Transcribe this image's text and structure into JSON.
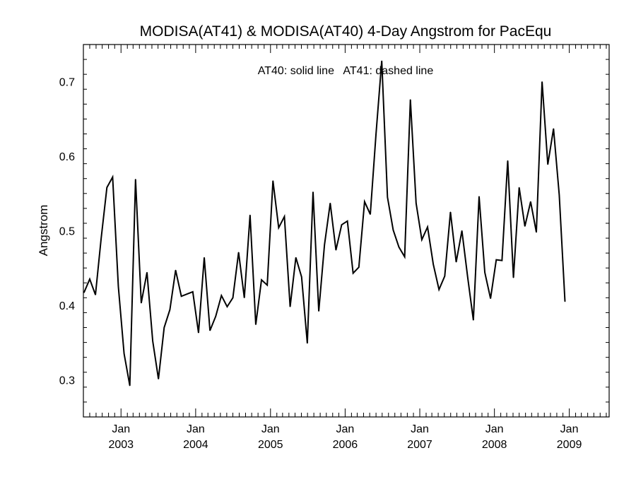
{
  "chart_data": {
    "type": "line",
    "title": "MODISA(AT41) & MODISA(AT40) 4-Day Angstrom for PacEqu",
    "annotation": "AT40: solid line   AT41: dashed line",
    "xlabel": "",
    "ylabel": "Angstrom",
    "xlim": [
      "2002-07-01",
      "2009-07-15"
    ],
    "ylim": [
      0.25,
      0.75
    ],
    "y_ticks": [
      0.3,
      0.4,
      0.5,
      0.6,
      0.7
    ],
    "y_tick_labels": [
      "0.3",
      "0.4",
      "0.5",
      "0.6",
      "0.7"
    ],
    "x_ticks": [
      {
        "date": "2003-01-01",
        "month": "Jan",
        "year": "2003"
      },
      {
        "date": "2004-01-01",
        "month": "Jan",
        "year": "2004"
      },
      {
        "date": "2005-01-01",
        "month": "Jan",
        "year": "2005"
      },
      {
        "date": "2006-01-01",
        "month": "Jan",
        "year": "2006"
      },
      {
        "date": "2007-01-01",
        "month": "Jan",
        "year": "2007"
      },
      {
        "date": "2008-01-01",
        "month": "Jan",
        "year": "2008"
      },
      {
        "date": "2009-01-01",
        "month": "Jan",
        "year": "2009"
      }
    ],
    "grid": false,
    "series": [
      {
        "name": "AT40",
        "style": "solid",
        "color": "#000000",
        "points": [
          [
            "2002-07-04",
            0.417
          ],
          [
            "2002-08-01",
            0.435
          ],
          [
            "2002-08-29",
            0.414
          ],
          [
            "2002-09-26",
            0.49
          ],
          [
            "2002-10-24",
            0.558
          ],
          [
            "2002-11-21",
            0.572
          ],
          [
            "2002-12-19",
            0.425
          ],
          [
            "2003-01-16",
            0.335
          ],
          [
            "2003-02-13",
            0.292
          ],
          [
            "2003-03-13",
            0.569
          ],
          [
            "2003-04-10",
            0.403
          ],
          [
            "2003-05-08",
            0.444
          ],
          [
            "2003-06-05",
            0.352
          ],
          [
            "2003-07-03",
            0.301
          ],
          [
            "2003-07-31",
            0.37
          ],
          [
            "2003-08-28",
            0.394
          ],
          [
            "2003-09-25",
            0.447
          ],
          [
            "2003-10-23",
            0.412
          ],
          [
            "2003-11-20",
            0.415
          ],
          [
            "2003-12-18",
            0.418
          ],
          [
            "2004-01-15",
            0.363
          ],
          [
            "2004-02-12",
            0.464
          ],
          [
            "2004-03-11",
            0.366
          ],
          [
            "2004-04-08",
            0.385
          ],
          [
            "2004-05-06",
            0.413
          ],
          [
            "2004-06-03",
            0.398
          ],
          [
            "2004-07-01",
            0.41
          ],
          [
            "2004-07-29",
            0.471
          ],
          [
            "2004-08-26",
            0.41
          ],
          [
            "2004-09-23",
            0.521
          ],
          [
            "2004-10-21",
            0.374
          ],
          [
            "2004-11-18",
            0.434
          ],
          [
            "2004-12-16",
            0.427
          ],
          [
            "2005-01-13",
            0.567
          ],
          [
            "2005-02-10",
            0.504
          ],
          [
            "2005-03-10",
            0.519
          ],
          [
            "2005-04-07",
            0.398
          ],
          [
            "2005-05-05",
            0.464
          ],
          [
            "2005-06-02",
            0.438
          ],
          [
            "2005-06-30",
            0.349
          ],
          [
            "2005-07-28",
            0.552
          ],
          [
            "2005-08-25",
            0.392
          ],
          [
            "2005-09-22",
            0.481
          ],
          [
            "2005-10-20",
            0.537
          ],
          [
            "2005-11-17",
            0.474
          ],
          [
            "2005-12-15",
            0.508
          ],
          [
            "2006-01-12",
            0.513
          ],
          [
            "2006-02-09",
            0.443
          ],
          [
            "2006-03-09",
            0.451
          ],
          [
            "2006-04-06",
            0.539
          ],
          [
            "2006-05-04",
            0.522
          ],
          [
            "2006-06-01",
            0.63
          ],
          [
            "2006-06-29",
            0.728
          ],
          [
            "2006-07-27",
            0.545
          ],
          [
            "2006-08-24",
            0.501
          ],
          [
            "2006-09-21",
            0.478
          ],
          [
            "2006-10-19",
            0.465
          ],
          [
            "2006-11-16",
            0.676
          ],
          [
            "2006-12-14",
            0.537
          ],
          [
            "2007-01-11",
            0.488
          ],
          [
            "2007-02-08",
            0.505
          ],
          [
            "2007-03-08",
            0.455
          ],
          [
            "2007-04-05",
            0.421
          ],
          [
            "2007-05-03",
            0.439
          ],
          [
            "2007-05-31",
            0.525
          ],
          [
            "2007-06-28",
            0.458
          ],
          [
            "2007-07-26",
            0.5
          ],
          [
            "2007-08-23",
            0.438
          ],
          [
            "2007-09-20",
            0.38
          ],
          [
            "2007-10-18",
            0.546
          ],
          [
            "2007-11-15",
            0.444
          ],
          [
            "2007-12-13",
            0.409
          ],
          [
            "2008-01-10",
            0.461
          ],
          [
            "2008-02-07",
            0.46
          ],
          [
            "2008-03-06",
            0.594
          ],
          [
            "2008-04-03",
            0.437
          ],
          [
            "2008-05-01",
            0.558
          ],
          [
            "2008-05-29",
            0.506
          ],
          [
            "2008-06-26",
            0.539
          ],
          [
            "2008-07-24",
            0.498
          ],
          [
            "2008-08-21",
            0.7
          ],
          [
            "2008-09-18",
            0.589
          ],
          [
            "2008-10-16",
            0.637
          ],
          [
            "2008-11-13",
            0.548
          ],
          [
            "2008-12-11",
            0.405
          ]
        ]
      }
    ]
  }
}
